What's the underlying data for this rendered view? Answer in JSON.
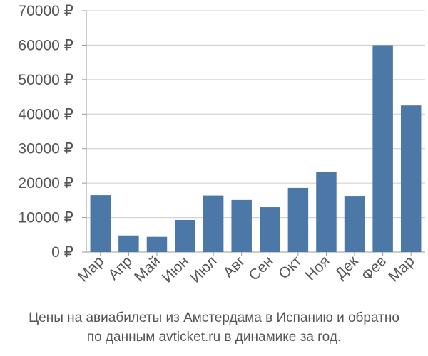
{
  "chart_data": {
    "type": "bar",
    "categories": [
      "Мар",
      "Апр",
      "Май",
      "Июн",
      "Июл",
      "Авг",
      "Сен",
      "Окт",
      "Ноя",
      "Дек",
      "Фев",
      "Мар"
    ],
    "values": [
      16500,
      4800,
      4400,
      9300,
      16400,
      15100,
      13000,
      18600,
      23200,
      16300,
      60000,
      42500
    ],
    "ylim": [
      0,
      70000
    ],
    "yticks": [
      0,
      10000,
      20000,
      30000,
      40000,
      50000,
      60000,
      70000
    ],
    "ytick_suffix": " ₽",
    "grid": true,
    "bar_color": "#4c78a8"
  },
  "caption": {
    "line1": "Цены на авиабилеты из Амстердама в Испанию и обратно",
    "line2": "по данным avticket.ru в динамике за год."
  }
}
